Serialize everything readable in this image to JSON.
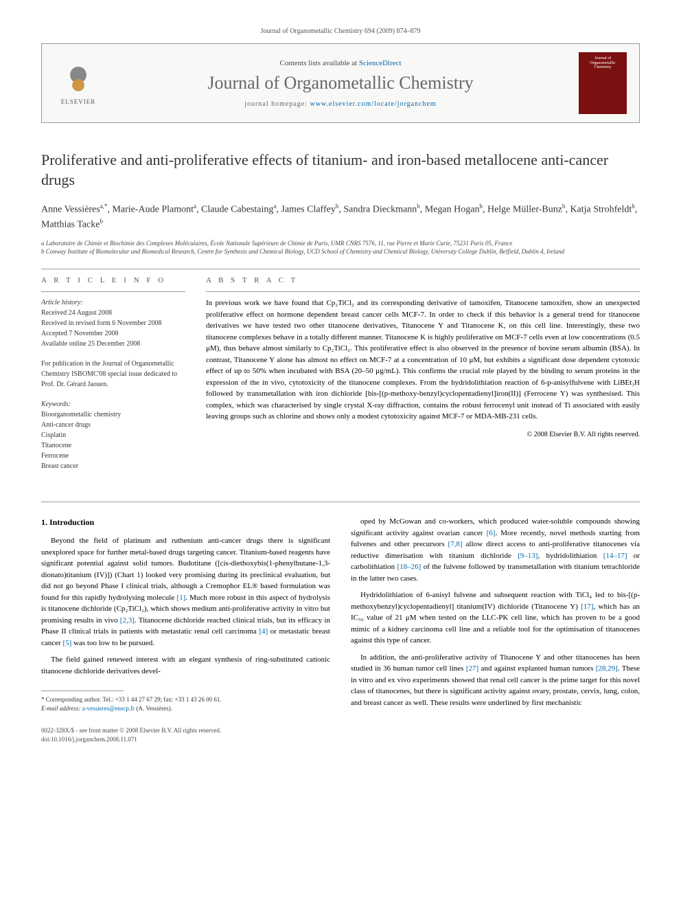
{
  "running_header": "Journal of Organometallic Chemistry 694 (2009) 874–879",
  "masthead": {
    "publisher_label": "ELSEVIER",
    "contents_prefix": "Contents lists available at ",
    "contents_link": "ScienceDirect",
    "journal": "Journal of Organometallic Chemistry",
    "homepage_prefix": "journal homepage: ",
    "homepage_url": "www.elsevier.com/locate/jorganchem",
    "cover_line1": "Journal of",
    "cover_line2": "Organometallic",
    "cover_line3": "Chemistry"
  },
  "title": "Proliferative and anti-proliferative effects of titanium- and iron-based metallocene anti-cancer drugs",
  "authors_html": "Anne Vessières<sup>a,*</sup>, Marie-Aude Plamont<sup>a</sup>, Claude Cabestaing<sup>a</sup>, James Claffey<sup>b</sup>, Sandra Dieckmann<sup>b</sup>, Megan Hogan<sup>b</sup>, Helge Müller-Bunz<sup>b</sup>, Katja Strohfeldt<sup>b</sup>, Matthias Tacke<sup>b</sup>",
  "affiliations": {
    "a": "a Laboratoire de Chimie et Biochimie des Complexes Moléculaires, École Nationale Supérieure de Chimie de Paris, UMR CNRS 7576, 11, rue Pierre et Marie Curie, 75231 Paris 05, France",
    "b": "b Conway Institute of Biomolecular and Biomedical Research, Centre for Synthesis and Chemical Biology, UCD School of Chemistry and Chemical Biology, University College Dublin, Belfield, Dublin 4, Ireland"
  },
  "article_info": {
    "heading": "A R T I C L E   I N F O",
    "history_head": "Article history:",
    "received": "Received 24 August 2008",
    "revised": "Received in revised form 6 November 2008",
    "accepted": "Accepted 7 November 2008",
    "online": "Available online 25 December 2008",
    "dedication": "For publication in the Journal of Organometallic Chemistry ISBOMC'08 special issue dedicated to Prof. Dr. Gérard Jaouen.",
    "keywords_head": "Keywords:",
    "keywords": [
      "Bioorganometallic chemistry",
      "Anti-cancer drugs",
      "Cisplatin",
      "Titanocene",
      "Ferrocene",
      "Breast cancer"
    ]
  },
  "abstract": {
    "heading": "A B S T R A C T",
    "text": "In previous work we have found that Cp₂TiCl₂ and its corresponding derivative of tamoxifen, Titanocene tamoxifen, show an unexpected proliferative effect on hormone dependent breast cancer cells MCF-7. In order to check if this behavior is a general trend for titanocene derivatives we have tested two other titanocene derivatives, Titanocene Y and Titanocene K, on this cell line. Interestingly, these two titanocene complexes behave in a totally different manner. Titanocene K is highly proliferative on MCF-7 cells even at low concentrations (0.5 μM), thus behave almost similarly to Cp₂TiCl₂. This proliferative effect is also observed in the presence of bovine serum albumin (BSA). In contrast, Titanocene Y alone has almost no effect on MCF-7 at a concentration of 10 μM, but exhibits a significant dose dependent cytotoxic effect of up to 50% when incubated with BSA (20–50 μg/mL). This confirms the crucial role played by the binding to serum proteins in the expression of the in vivo, cytotoxicity of the titanocene complexes. From the hydridolithiation reaction of 6-p-anisylfulvene with LiBEt₃H followed by transmetallation with iron dichloride [bis-[(p-methoxy-benzyl)cyclopentadienyl]iron(II)] (Ferrocene Y) was synthesised. This complex, which was characterised by single crystal X-ray diffraction, contains the robust ferrocenyl unit instead of Ti associated with easily leaving groups such as chlorine and shows only a modest cytotoxicity against MCF-7 or MDA-MB-231 cells.",
    "copyright": "© 2008 Elsevier B.V. All rights reserved."
  },
  "body": {
    "section_heading": "1. Introduction",
    "left_paragraphs": [
      "Beyond the field of platinum and ruthenium anti-cancer drugs there is significant unexplored space for further metal-based drugs targeting cancer. Titanium-based reagents have significant potential against solid tumors. Budotitane ([cis-diethoxybis(1-phenylbutane-1,3-dionato)titanium (IV)]) (Chart 1) looked very promising during its preclinical evaluation, but did not go beyond Phase I clinical trials, although a Cremophor EL® based formulation was found for this rapidly hydrolysing molecule [1]. Much more robust in this aspect of hydrolysis is titanocene dichloride (Cp₂TiCl₂), which shows medium anti-proliferative activity in vitro but promising results in vivo [2,3]. Titanocene dichloride reached clinical trials, but its efficacy in Phase II clinical trials in patients with metastatic renal cell carcinoma [4] or metastatic breast cancer [5] was too low to be pursued.",
      "The field gained renewed interest with an elegant synthesis of ring-substituted cationic titanocene dichloride derivatives devel-"
    ],
    "right_paragraphs": [
      "oped by McGowan and co-workers, which produced water-soluble compounds showing significant activity against ovarian cancer [6]. More recently, novel methods starting from fulvenes and other precursors [7,8] allow direct access to anti-proliferative titanocenes via reductive dimerisation with titanium dichloride [9–13], hydridolithiation [14–17] or carbolithiation [18–26] of the fulvene followed by transmetallation with titanium tetrachloride in the latter two cases.",
      "Hydridolithiation of 6-anisyl fulvene and subsequent reaction with TiCl₄ led to bis-[(p-methoxybenzyl)cyclopentadienyl] titanium(IV) dichloride (Titanocene Y) [17], which has an IC₅₀ value of 21 μM when tested on the LLC-PK cell line, which has proven to be a good mimic of a kidney carcinoma cell line and a reliable tool for the optimisation of titanocenes against this type of cancer.",
      "In addition, the anti-proliferative activity of Titanocene Y and other titanocenes has been studied in 36 human tumor cell lines [27] and against explanted human tumors [28,29]. These in vitro and ex vivo experiments showed that renal cell cancer is the prime target for this novel class of titanocenes, but there is significant activity against ovary, prostate, cervix, lung, colon, and breast cancer as well. These results were underlined by first mechanistic"
    ]
  },
  "footnote": {
    "corresponding": "* Corresponding author. Tel.: +33 1 44 27 67 29; fax: +33 1 43 26 00 61.",
    "email_label": "E-mail address:",
    "email": "a-vessieres@enscp.fr",
    "email_suffix": "(A. Vessières)."
  },
  "page_footer": {
    "line1": "0022-328X/$ - see front matter © 2008 Elsevier B.V. All rights reserved.",
    "line2": "doi:10.1016/j.jorganchem.2008.11.071"
  },
  "colors": {
    "link": "#0066aa",
    "text": "#000000",
    "grey": "#666666",
    "rule": "#999999",
    "cover": "#7a1010"
  }
}
